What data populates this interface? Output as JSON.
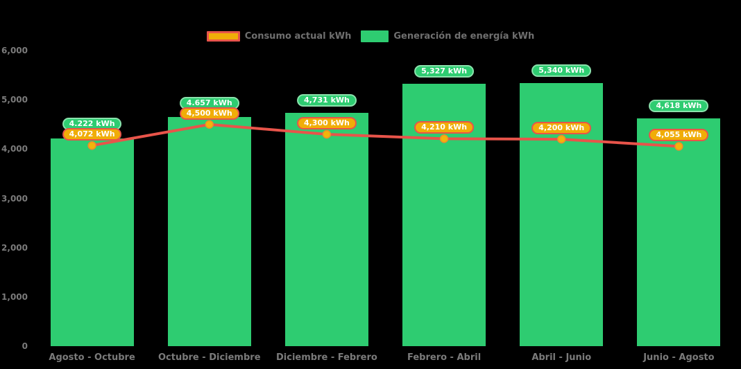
{
  "legend": {
    "items": [
      {
        "label": "Consumo actual kWh"
      },
      {
        "label": "Generación de energía kWh"
      }
    ]
  },
  "chart_data": {
    "type": "bar+line",
    "categories": [
      "Agosto - Octubre",
      "Octubre - Diciembre",
      "Diciembre - Febrero",
      "Febrero - Abril",
      "Abril - Junio",
      "Junio - Agosto"
    ],
    "series": [
      {
        "name": "Generación de energía kWh",
        "type": "bar",
        "color": "#2ecc71",
        "label_bg": "#2ecc71",
        "label_border": "#8ae2ac",
        "values": [
          4222,
          4657,
          4731,
          5327,
          5340,
          4618
        ],
        "labels": [
          "4.222 kWh",
          "4.657 kWh",
          "4,731 kWh",
          "5,327 kWh",
          "5,340 kWh",
          "4,618 kWh"
        ]
      },
      {
        "name": "Consumo actual kWh",
        "type": "line",
        "color": "#e8544a",
        "marker_fill": "#f2b50a",
        "marker_stroke": "#ee8a2f",
        "label_bg": "#f0ad08",
        "label_border": "#e8544a",
        "values": [
          4072,
          4500,
          4300,
          4210,
          4200,
          4055
        ],
        "labels": [
          "4,072 kWh",
          "4,500 kWh",
          "4,300 kWh",
          "4,210 kWh",
          "4,200 kWh",
          "4,055 kWh"
        ]
      }
    ],
    "ylim": [
      0,
      6000
    ],
    "yticks": {
      "values": [
        6000,
        5000,
        4000,
        3000,
        2000,
        1000,
        0
      ],
      "labels": [
        "6,000",
        "5,000",
        "4,000",
        "3,000",
        "2,000",
        "1,000",
        "0"
      ]
    },
    "grid": false,
    "legend_position": "top-center",
    "background": "#000000"
  }
}
